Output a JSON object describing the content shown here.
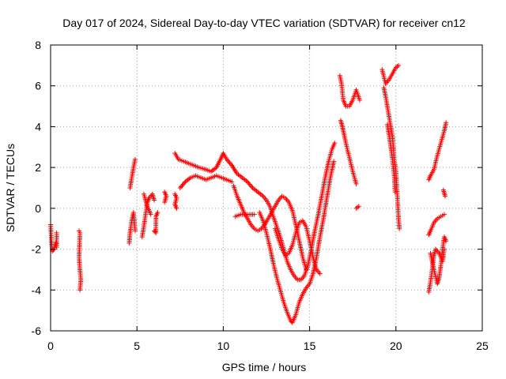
{
  "chart_data": {
    "type": "scatter",
    "title": "Day 017 of 2024, Sidereal Day-to-day VTEC variation (SDTVAR) for receiver cn12",
    "xlabel": "GPS time / hours",
    "ylabel": "SDTVAR / TECUs",
    "xlim": [
      0,
      25
    ],
    "ylim": [
      -6,
      8
    ],
    "xticks": [
      0,
      5,
      10,
      15,
      20,
      25
    ],
    "yticks": [
      -6,
      -4,
      -2,
      0,
      2,
      4,
      6,
      8
    ],
    "xtick_labels": [
      "0",
      "5",
      "10",
      "15",
      "20",
      "25"
    ],
    "ytick_labels": [
      "-6",
      "-4",
      "-2",
      "0",
      "2",
      "4",
      "6",
      "8"
    ],
    "grid": true,
    "marker": "+",
    "color": "#ff0000",
    "series": [
      {
        "name": "SDTVAR",
        "segments": [
          [
            [
              0.0,
              -0.8
            ],
            [
              0.05,
              -1.6
            ],
            [
              0.1,
              -2.1
            ],
            [
              0.2,
              -2.0
            ],
            [
              0.3,
              -1.7
            ]
          ],
          [
            [
              0.35,
              -1.2
            ],
            [
              0.35,
              -1.9
            ]
          ],
          [
            [
              1.65,
              -1.1
            ],
            [
              1.7,
              -1.2
            ],
            [
              1.65,
              -2.4
            ],
            [
              1.7,
              -3.0
            ],
            [
              1.75,
              -3.5
            ],
            [
              1.7,
              -4.0
            ]
          ],
          [
            [
              4.6,
              1.0
            ],
            [
              4.7,
              1.5
            ],
            [
              4.8,
              2.0
            ],
            [
              4.9,
              2.4
            ]
          ],
          [
            [
              4.55,
              -1.7
            ],
            [
              4.6,
              -1.2
            ],
            [
              4.7,
              -0.6
            ],
            [
              4.8,
              -0.2
            ],
            [
              4.9,
              -1.1
            ]
          ],
          [
            [
              5.3,
              -1.4
            ],
            [
              5.4,
              -0.9
            ],
            [
              5.5,
              -0.3
            ],
            [
              5.6,
              0.3
            ],
            [
              5.7,
              0.5
            ],
            [
              5.9,
              0.7
            ],
            [
              6.0,
              0.4
            ]
          ],
          [
            [
              5.4,
              0.7
            ],
            [
              5.6,
              0.1
            ],
            [
              5.8,
              -0.3
            ]
          ],
          [
            [
              6.0,
              -1.1
            ],
            [
              6.1,
              -1.2
            ],
            [
              6.1,
              -0.4
            ],
            [
              6.2,
              -0.2
            ]
          ],
          [
            [
              6.6,
              0.8
            ],
            [
              6.7,
              0.6
            ],
            [
              6.6,
              0.3
            ]
          ],
          [
            [
              7.2,
              0.7
            ],
            [
              7.3,
              0.5
            ],
            [
              7.2,
              0.2
            ],
            [
              7.3,
              0.0
            ]
          ],
          [
            [
              7.2,
              2.7
            ],
            [
              7.4,
              2.4
            ],
            [
              7.7,
              2.3
            ],
            [
              8.0,
              2.2
            ],
            [
              8.3,
              2.1
            ],
            [
              8.6,
              2.0
            ],
            [
              9.0,
              1.9
            ],
            [
              9.3,
              1.8
            ],
            [
              9.6,
              2.0
            ],
            [
              9.9,
              2.5
            ],
            [
              10.0,
              2.7
            ],
            [
              10.2,
              2.4
            ],
            [
              10.5,
              2.1
            ],
            [
              10.8,
              1.7
            ],
            [
              11.1,
              1.5
            ],
            [
              11.4,
              1.3
            ],
            [
              11.7,
              1.0
            ],
            [
              12.0,
              0.8
            ],
            [
              12.3,
              0.6
            ],
            [
              12.5,
              0.4
            ],
            [
              12.7,
              0.1
            ],
            [
              12.9,
              -0.4
            ],
            [
              13.1,
              -0.9
            ],
            [
              13.3,
              -1.4
            ],
            [
              13.5,
              -2.0
            ],
            [
              13.7,
              -2.6
            ],
            [
              13.9,
              -3.0
            ],
            [
              14.1,
              -3.3
            ],
            [
              14.3,
              -3.5
            ],
            [
              14.5,
              -3.5
            ],
            [
              14.7,
              -3.3
            ],
            [
              14.9,
              -2.8
            ],
            [
              15.1,
              -2.0
            ],
            [
              15.3,
              -1.1
            ],
            [
              15.5,
              -0.3
            ],
            [
              15.7,
              0.6
            ],
            [
              15.9,
              1.5
            ],
            [
              16.1,
              2.3
            ],
            [
              16.3,
              2.9
            ],
            [
              16.45,
              3.2
            ]
          ],
          [
            [
              7.5,
              1.0
            ],
            [
              7.8,
              1.3
            ],
            [
              8.1,
              1.5
            ],
            [
              8.4,
              1.6
            ],
            [
              8.7,
              1.5
            ],
            [
              9.0,
              1.4
            ],
            [
              9.3,
              1.5
            ],
            [
              9.6,
              1.6
            ],
            [
              9.9,
              1.5
            ],
            [
              10.2,
              1.4
            ],
            [
              10.5,
              1.3
            ]
          ],
          [
            [
              10.6,
              1.1
            ],
            [
              10.8,
              0.6
            ],
            [
              11.0,
              0.2
            ],
            [
              11.2,
              -0.2
            ],
            [
              11.4,
              -0.5
            ],
            [
              11.6,
              -0.8
            ],
            [
              11.8,
              -1.0
            ],
            [
              12.0,
              -1.1
            ],
            [
              12.2,
              -1.0
            ],
            [
              12.4,
              -0.8
            ],
            [
              12.6,
              -0.5
            ],
            [
              12.8,
              -0.2
            ],
            [
              13.0,
              0.1
            ],
            [
              13.2,
              0.4
            ],
            [
              13.4,
              0.6
            ],
            [
              13.6,
              0.5
            ],
            [
              13.8,
              0.3
            ],
            [
              14.0,
              -0.1
            ],
            [
              14.2,
              -0.8
            ],
            [
              14.4,
              -1.6
            ],
            [
              14.6,
              -2.4
            ],
            [
              14.8,
              -3.0
            ]
          ],
          [
            [
              10.7,
              -0.4
            ],
            [
              11.0,
              -0.3
            ],
            [
              11.3,
              -0.3
            ],
            [
              11.6,
              -0.3
            ],
            [
              11.8,
              -0.3
            ]
          ],
          [
            [
              12.1,
              -0.2
            ],
            [
              12.3,
              -0.6
            ],
            [
              12.5,
              -1.2
            ],
            [
              12.7,
              -1.9
            ],
            [
              12.9,
              -2.7
            ],
            [
              13.1,
              -3.4
            ],
            [
              13.3,
              -4.0
            ],
            [
              13.5,
              -4.6
            ],
            [
              13.7,
              -5.1
            ],
            [
              13.9,
              -5.5
            ],
            [
              14.0,
              -5.6
            ],
            [
              14.2,
              -5.2
            ],
            [
              14.4,
              -4.6
            ],
            [
              14.6,
              -4.2
            ],
            [
              14.8,
              -3.9
            ],
            [
              15.0,
              -3.7
            ],
            [
              15.2,
              -3.2
            ],
            [
              15.4,
              -2.4
            ],
            [
              15.6,
              -1.4
            ],
            [
              15.8,
              -0.5
            ],
            [
              16.0,
              0.5
            ],
            [
              16.2,
              1.5
            ],
            [
              16.4,
              2.3
            ]
          ],
          [
            [
              13.0,
              -1.0
            ],
            [
              13.2,
              -1.5
            ],
            [
              13.4,
              -2.0
            ],
            [
              13.6,
              -2.3
            ],
            [
              13.8,
              -2.2
            ],
            [
              14.0,
              -1.8
            ],
            [
              14.2,
              -1.2
            ],
            [
              14.4,
              -0.7
            ],
            [
              14.6,
              -0.6
            ],
            [
              14.8,
              -0.9
            ],
            [
              15.0,
              -1.6
            ],
            [
              15.2,
              -2.4
            ],
            [
              15.4,
              -3.0
            ],
            [
              15.6,
              -3.2
            ]
          ],
          [
            [
              16.8,
              4.3
            ],
            [
              16.9,
              4.0
            ],
            [
              17.0,
              3.6
            ],
            [
              17.1,
              3.2
            ],
            [
              17.3,
              2.5
            ],
            [
              17.5,
              1.8
            ],
            [
              17.7,
              1.2
            ]
          ],
          [
            [
              16.75,
              6.5
            ],
            [
              16.85,
              6.1
            ],
            [
              16.95,
              5.3
            ],
            [
              17.1,
              5.0
            ],
            [
              17.3,
              5.0
            ],
            [
              17.5,
              5.3
            ],
            [
              17.7,
              5.8
            ],
            [
              17.9,
              5.3
            ]
          ],
          [
            [
              17.7,
              0.0
            ],
            [
              17.85,
              0.1
            ]
          ],
          [
            [
              19.2,
              6.8
            ],
            [
              19.4,
              6.1
            ],
            [
              19.6,
              6.3
            ],
            [
              19.8,
              6.6
            ],
            [
              20.0,
              6.9
            ],
            [
              20.15,
              7.0
            ]
          ],
          [
            [
              19.3,
              5.9
            ],
            [
              19.4,
              5.5
            ],
            [
              19.5,
              5.0
            ],
            [
              19.6,
              4.5
            ],
            [
              19.7,
              4.0
            ],
            [
              19.8,
              3.5
            ],
            [
              19.85,
              3.0
            ],
            [
              19.9,
              2.4
            ],
            [
              20.0,
              1.8
            ],
            [
              20.05,
              1.0
            ],
            [
              20.1,
              0.3
            ],
            [
              20.15,
              -0.5
            ],
            [
              20.2,
              -1.0
            ]
          ],
          [
            [
              19.5,
              4.1
            ],
            [
              19.6,
              3.6
            ],
            [
              19.7,
              3.0
            ],
            [
              19.8,
              2.4
            ],
            [
              19.9,
              1.6
            ],
            [
              19.95,
              0.8
            ]
          ],
          [
            [
              21.9,
              1.4
            ],
            [
              22.0,
              1.6
            ],
            [
              22.2,
              1.9
            ],
            [
              22.4,
              2.6
            ],
            [
              22.6,
              3.2
            ],
            [
              22.8,
              3.8
            ],
            [
              22.9,
              4.2
            ]
          ],
          [
            [
              21.9,
              -1.3
            ],
            [
              22.0,
              -1.1
            ],
            [
              22.2,
              -0.7
            ],
            [
              22.4,
              -0.5
            ],
            [
              22.6,
              -0.4
            ],
            [
              22.8,
              -0.3
            ]
          ],
          [
            [
              21.9,
              -4.1
            ],
            [
              22.0,
              -3.6
            ],
            [
              22.1,
              -3.0
            ],
            [
              22.2,
              -2.3
            ],
            [
              22.3,
              -2.0
            ],
            [
              22.5,
              -2.2
            ],
            [
              22.7,
              -2.6
            ],
            [
              22.8,
              -2.0
            ]
          ],
          [
            [
              22.0,
              -2.2
            ],
            [
              22.2,
              -3.0
            ],
            [
              22.4,
              -3.7
            ],
            [
              22.5,
              -3.4
            ],
            [
              22.6,
              -2.8
            ],
            [
              22.7,
              -2.0
            ],
            [
              22.8,
              -1.4
            ],
            [
              22.9,
              -1.6
            ]
          ],
          [
            [
              22.75,
              0.9
            ],
            [
              22.85,
              0.6
            ]
          ]
        ]
      }
    ]
  }
}
